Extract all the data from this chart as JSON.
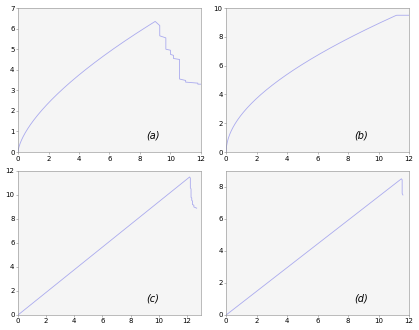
{
  "line_color": "#aaaaee",
  "line_width": 0.6,
  "label_fontsize": 7,
  "tick_fontsize": 5,
  "fig_facecolor": "#f0f0f0",
  "subplots": [
    {
      "label": "(a)",
      "xlim": [
        0,
        12
      ],
      "ylim": [
        0,
        7
      ],
      "xticks": [
        0,
        2,
        4,
        6,
        8,
        10,
        12
      ],
      "yticks": [
        0,
        1,
        2,
        3,
        4,
        5,
        6,
        7
      ],
      "curve_type": "a"
    },
    {
      "label": "(b)",
      "xlim": [
        0,
        12
      ],
      "ylim": [
        0,
        10
      ],
      "xticks": [
        0,
        2,
        4,
        6,
        8,
        10,
        12
      ],
      "yticks": [
        0,
        2,
        4,
        6,
        8,
        10
      ],
      "curve_type": "b"
    },
    {
      "label": "(c)",
      "xlim": [
        0,
        13
      ],
      "ylim": [
        0,
        12
      ],
      "xticks": [
        0,
        2,
        4,
        6,
        8,
        10,
        12
      ],
      "yticks": [
        0,
        2,
        4,
        6,
        8,
        10,
        12
      ],
      "curve_type": "c"
    },
    {
      "label": "(d)",
      "xlim": [
        0,
        12
      ],
      "ylim": [
        0,
        9
      ],
      "xticks": [
        0,
        2,
        4,
        6,
        8,
        10,
        12
      ],
      "yticks": [
        0,
        2,
        4,
        6,
        8
      ],
      "curve_type": "d"
    }
  ]
}
